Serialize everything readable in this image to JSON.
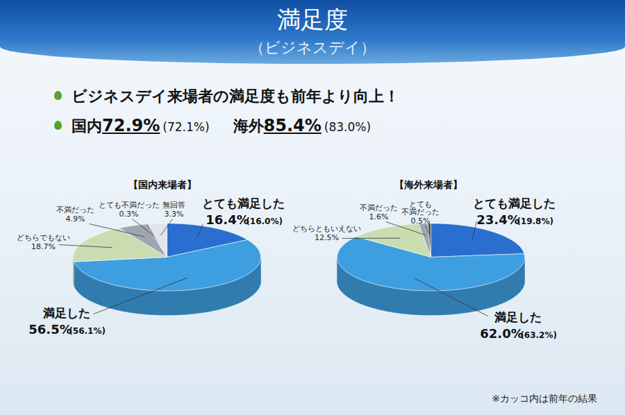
{
  "title": "満足度",
  "subtitle": "（ビジネスデイ）",
  "headline": "ビジネスデイ来場者の満足度も前年より向上！",
  "summary": [
    {
      "label": "国内",
      "value": "72.9%",
      "previous": "(72.1%)"
    },
    {
      "label": "海外",
      "value": "85.4%",
      "previous": "(83.0%)"
    }
  ],
  "note": "※カッコ内は前年の結果",
  "chart_data": [
    {
      "type": "pie",
      "title": "【国内来場者】",
      "categories": [
        "とても満足した",
        "満足した",
        "どちらでもない",
        "不満だった",
        "とても不満だった",
        "無回答"
      ],
      "values": [
        16.4,
        56.5,
        18.7,
        4.9,
        0.3,
        3.3
      ],
      "value_labels": [
        "16.4%",
        "56.5%",
        "18.7%",
        "4.9%",
        "0.3%",
        "3.3%"
      ],
      "previous_value_labels": [
        "(16.0%)",
        "(56.1%)",
        null,
        null,
        null,
        null
      ],
      "colors": [
        "#2a6fd0",
        "#3d9fe0",
        "#c9ddb1",
        "#9ea7b0",
        "#48525c",
        "#dfe5ea"
      ],
      "data_labels": true
    },
    {
      "type": "pie",
      "title": "【海外来場者】",
      "categories": [
        "とても満足した",
        "満足した",
        "どちらともいえない",
        "不満だった",
        "とても不満だった"
      ],
      "values": [
        23.4,
        62.0,
        12.5,
        1.6,
        0.5
      ],
      "value_labels": [
        "23.4%",
        "62.0%",
        "12.5%",
        "1.6%",
        "0.5%"
      ],
      "previous_value_labels": [
        "(19.8%)",
        "(63.2%)",
        null,
        null,
        null
      ],
      "colors": [
        "#2a6fd0",
        "#3d9fe0",
        "#c9ddb1",
        "#9ea7b0",
        "#48525c"
      ],
      "data_labels": true
    }
  ]
}
